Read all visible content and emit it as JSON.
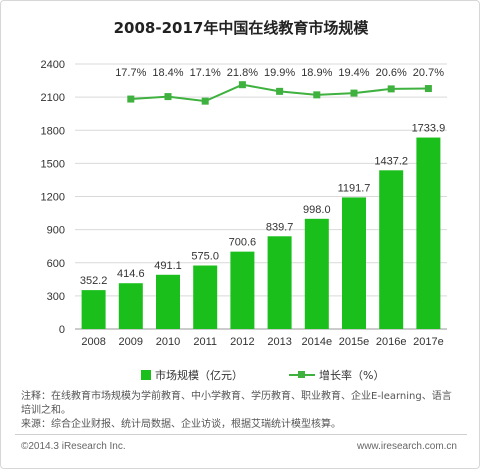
{
  "colors": {
    "bar": "#1bbf1b",
    "line": "#3eb13f",
    "grid": "#d9d9d9"
  },
  "chart_data": {
    "type": "bar",
    "title": "2008-2017年中国在线教育市场规模",
    "categories": [
      "2008",
      "2009",
      "2010",
      "2011",
      "2012",
      "2013",
      "2014e",
      "2015e",
      "2016e",
      "2017e"
    ],
    "ylim": [
      0,
      2400
    ],
    "yticks": [
      0,
      300,
      600,
      900,
      1200,
      1500,
      1800,
      2100,
      2400
    ],
    "grid": true,
    "legend_position": "bottom",
    "series": [
      {
        "name": "市场规模（亿元）",
        "type": "bar",
        "values": [
          352.2,
          414.6,
          491.1,
          575.0,
          700.6,
          839.7,
          998.0,
          1191.7,
          1437.2,
          1733.9
        ],
        "labels": [
          "352.2",
          "414.6",
          "491.1",
          "575.0",
          "700.6",
          "839.7",
          "998.0",
          "1191.7",
          "1437.2",
          "1733.9"
        ]
      },
      {
        "name": "增长率（%）",
        "type": "line",
        "values": [
          null,
          17.7,
          18.4,
          17.1,
          21.8,
          19.9,
          18.9,
          19.4,
          20.6,
          20.7
        ],
        "labels": [
          "",
          "17.7%",
          "18.4%",
          "17.1%",
          "21.8%",
          "19.9%",
          "18.9%",
          "19.4%",
          "20.6%",
          "20.7%"
        ]
      }
    ]
  },
  "notes": {
    "line1": "注释：在线教育市场规模为学前教育、中小学教育、学历教育、职业教育、企业E-learning、语言培训之和。",
    "line2": "来源：综合企业财报、统计局数据、企业访谈，根据艾瑞统计模型核算。"
  },
  "footer": {
    "copyright": "©2014.3 iResearch Inc.",
    "website": "www.iresearch.com.cn"
  }
}
